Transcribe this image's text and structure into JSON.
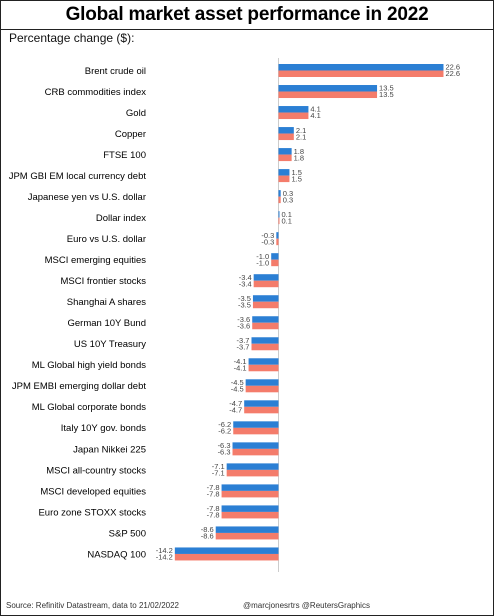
{
  "title": "Global market asset performance in 2022",
  "subtitle": "Percentage change ($):",
  "footer": {
    "source": "Source: Refinitiv Datastream, data to 21/02/2022",
    "credit": "@marcjonesrtrs @ReutersGraphics"
  },
  "colors": {
    "series_top": "#2b7fd4",
    "series_bottom": "#f47c6b",
    "zero_line": "#cccccc"
  },
  "chart_data": {
    "type": "bar",
    "orientation": "horizontal",
    "title": "Global market asset performance in 2022",
    "subtitle": "Percentage change ($):",
    "xlabel": "",
    "ylabel": "",
    "xlim": [
      -14.2,
      22.6
    ],
    "grid": false,
    "legend": "none",
    "categories": [
      "Brent crude oil",
      "CRB commodities index",
      "Gold",
      "Copper",
      "FTSE 100",
      "JPM GBI EM local currency debt",
      "Japanese yen vs U.S. dollar",
      "Dollar index",
      "Euro vs U.S. dollar",
      "MSCI emerging equities",
      "MSCI frontier stocks",
      "Shanghai A shares",
      "German 10Y Bund",
      "US 10Y Treasury",
      "ML Global high yield bonds",
      "JPM EMBI emerging dollar debt",
      "ML Global corporate bonds",
      "Italy 10Y gov. bonds",
      "Japan Nikkei 225",
      "MSCI all-country stocks",
      "MSCI developed equities",
      "Euro zone STOXX stocks",
      "S&P 500",
      "NASDAQ 100"
    ],
    "series": [
      {
        "values": [
          22.6,
          13.5,
          4.1,
          2.1,
          1.8,
          1.5,
          0.3,
          0.1,
          -0.3,
          -1.0,
          -3.4,
          -3.5,
          -3.6,
          -3.7,
          -4.1,
          -4.5,
          -4.7,
          -6.2,
          -6.3,
          -7.1,
          -7.8,
          -7.8,
          -8.6,
          -14.2
        ]
      },
      {
        "values": [
          22.6,
          13.5,
          4.1,
          2.1,
          1.8,
          1.5,
          0.3,
          0.1,
          -0.3,
          -1.0,
          -3.4,
          -3.5,
          -3.6,
          -3.7,
          -4.1,
          -4.5,
          -4.7,
          -6.2,
          -6.3,
          -7.1,
          -7.8,
          -7.8,
          -8.6,
          -14.2
        ]
      }
    ],
    "value_labels": [
      [
        "22.6",
        "13.5",
        "4.1",
        "2.1",
        "1.8",
        "1.5",
        "0.3",
        "0.1",
        "-0.3",
        "-1.0",
        "-3.4",
        "-3.5",
        "-3.6",
        "-3.7",
        "-4.1",
        "-4.5",
        "-4.7",
        "-6.2",
        "-6.3",
        "-7.1",
        "-7.8",
        "-7.8",
        "-8.6",
        "-14.2"
      ],
      [
        "22.6",
        "13.5",
        "4.1",
        "2.1",
        "1.8",
        "1.5",
        "0.3",
        "0.1",
        "-0.3",
        "-1.0",
        "-3.4",
        "-3.5",
        "-3.6",
        "-3.7",
        "-4.1",
        "-4.5",
        "-4.7",
        "-6.2",
        "-6.3",
        "-7.1",
        "-7.8",
        "-7.8",
        "-8.6",
        "-14.2"
      ]
    ]
  }
}
